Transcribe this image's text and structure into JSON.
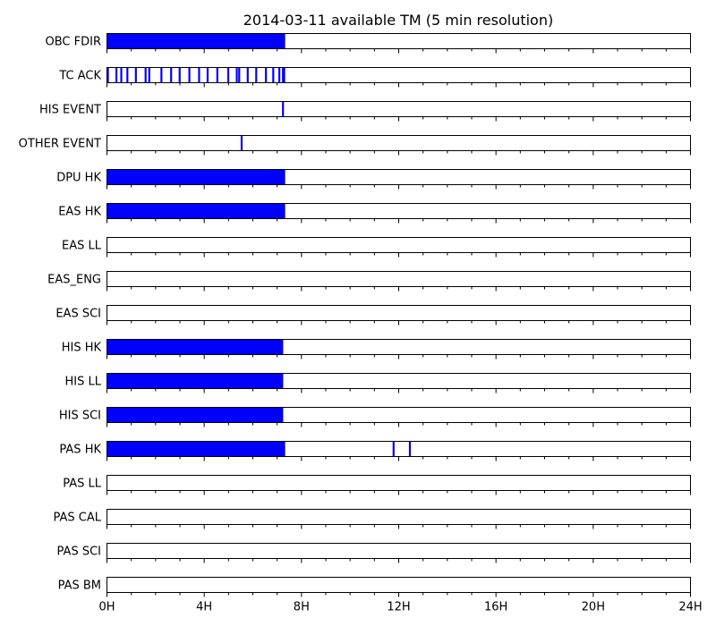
{
  "chart_data": {
    "type": "timeline",
    "title": "2014-03-11 available TM (5 min resolution)",
    "x_unit": "hours",
    "xlim": [
      0,
      24
    ],
    "x_ticks": [
      {
        "value": 0,
        "label": "0H"
      },
      {
        "value": 4,
        "label": "4H"
      },
      {
        "value": 8,
        "label": "8H"
      },
      {
        "value": 12,
        "label": "12H"
      },
      {
        "value": 16,
        "label": "16H"
      },
      {
        "value": 20,
        "label": "20H"
      },
      {
        "value": 24,
        "label": "24H"
      }
    ],
    "minor_tick_step_hours": 1,
    "fill_color": "#0000ff",
    "rows": [
      {
        "name": "OBC FDIR",
        "intervals": [
          [
            0,
            7.33
          ]
        ]
      },
      {
        "name": "TC ACK",
        "intervals": [
          [
            0.0,
            0.08
          ],
          [
            0.35,
            0.43
          ],
          [
            0.55,
            0.63
          ],
          [
            0.8,
            0.88
          ],
          [
            1.15,
            1.23
          ],
          [
            1.55,
            1.63
          ],
          [
            1.7,
            1.78
          ],
          [
            2.2,
            2.28
          ],
          [
            2.6,
            2.68
          ],
          [
            2.95,
            3.03
          ],
          [
            3.35,
            3.43
          ],
          [
            3.75,
            3.83
          ],
          [
            4.1,
            4.18
          ],
          [
            4.5,
            4.58
          ],
          [
            4.95,
            5.03
          ],
          [
            5.3,
            5.38
          ],
          [
            5.4,
            5.48
          ],
          [
            5.75,
            5.83
          ],
          [
            6.1,
            6.18
          ],
          [
            6.5,
            6.58
          ],
          [
            6.8,
            6.88
          ],
          [
            7.05,
            7.13
          ],
          [
            7.2,
            7.33
          ]
        ]
      },
      {
        "name": "HIS EVENT",
        "intervals": [
          [
            7.2,
            7.28
          ]
        ]
      },
      {
        "name": "OTHER EVENT",
        "intervals": [
          [
            5.5,
            5.58
          ]
        ]
      },
      {
        "name": "DPU HK",
        "intervals": [
          [
            0,
            7.33
          ]
        ]
      },
      {
        "name": "EAS HK",
        "intervals": [
          [
            0,
            7.33
          ]
        ]
      },
      {
        "name": "EAS LL",
        "intervals": []
      },
      {
        "name": "EAS_ENG",
        "intervals": []
      },
      {
        "name": "EAS SCI",
        "intervals": []
      },
      {
        "name": "HIS HK",
        "intervals": [
          [
            0,
            7.25
          ]
        ]
      },
      {
        "name": "HIS LL",
        "intervals": [
          [
            0,
            7.25
          ]
        ]
      },
      {
        "name": "HIS SCI",
        "intervals": [
          [
            0,
            7.25
          ]
        ]
      },
      {
        "name": "PAS HK",
        "intervals": [
          [
            0,
            7.33
          ],
          [
            11.75,
            11.83
          ],
          [
            12.42,
            12.5
          ]
        ]
      },
      {
        "name": "PAS LL",
        "intervals": []
      },
      {
        "name": "PAS CAL",
        "intervals": []
      },
      {
        "name": "PAS SCI",
        "intervals": []
      },
      {
        "name": "PAS BM",
        "intervals": []
      }
    ]
  }
}
